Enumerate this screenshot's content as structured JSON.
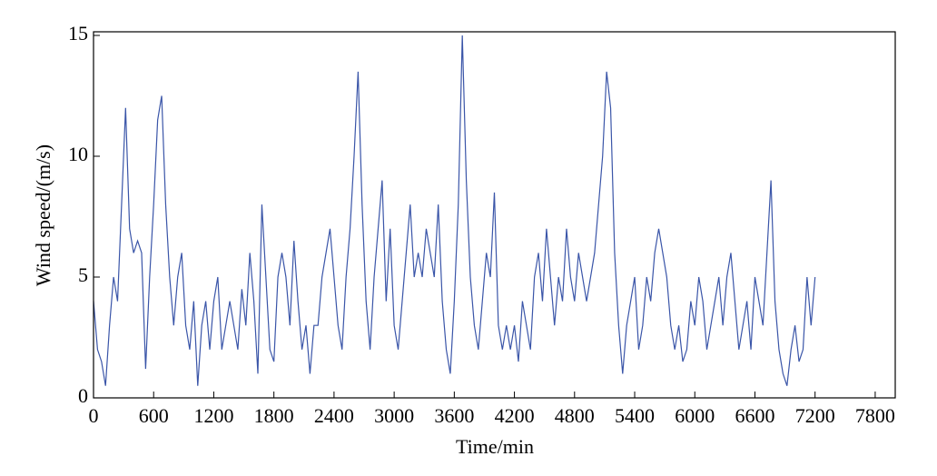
{
  "chart_data": {
    "type": "line",
    "x_label": "Time/min",
    "y_label": "Wind speed/(m/s)",
    "x": [
      0,
      40,
      80,
      120,
      160,
      200,
      240,
      280,
      320,
      360,
      400,
      440,
      480,
      520,
      560,
      600,
      640,
      680,
      720,
      760,
      800,
      840,
      880,
      920,
      960,
      1000,
      1040,
      1080,
      1120,
      1160,
      1200,
      1240,
      1280,
      1320,
      1360,
      1400,
      1440,
      1480,
      1520,
      1560,
      1600,
      1640,
      1680,
      1720,
      1760,
      1800,
      1840,
      1880,
      1920,
      1960,
      2000,
      2040,
      2080,
      2120,
      2160,
      2200,
      2240,
      2280,
      2320,
      2360,
      2400,
      2440,
      2480,
      2520,
      2560,
      2600,
      2640,
      2680,
      2720,
      2760,
      2800,
      2840,
      2880,
      2920,
      2960,
      3000,
      3040,
      3080,
      3120,
      3160,
      3200,
      3240,
      3280,
      3320,
      3360,
      3400,
      3440,
      3480,
      3520,
      3560,
      3600,
      3640,
      3680,
      3720,
      3760,
      3800,
      3840,
      3880,
      3920,
      3960,
      4000,
      4040,
      4080,
      4120,
      4160,
      4200,
      4240,
      4280,
      4320,
      4360,
      4400,
      4440,
      4480,
      4520,
      4560,
      4600,
      4640,
      4680,
      4720,
      4760,
      4800,
      4840,
      4880,
      4920,
      4960,
      5000,
      5040,
      5080,
      5120,
      5160,
      5200,
      5240,
      5280,
      5320,
      5360,
      5400,
      5440,
      5480,
      5520,
      5560,
      5600,
      5640,
      5680,
      5720,
      5760,
      5800,
      5840,
      5880,
      5920,
      5960,
      6000,
      6040,
      6080,
      6120,
      6160,
      6200,
      6240,
      6280,
      6320,
      6360,
      6400,
      6440,
      6480,
      6520,
      6560,
      6600,
      6640,
      6680,
      6720,
      6760,
      6800,
      6840,
      6880,
      6920,
      6960,
      7000,
      7040,
      7080,
      7120,
      7160,
      7200
    ],
    "series": [
      {
        "color": "#3a55a8",
        "values": [
          4,
          2,
          1.5,
          0.5,
          3,
          5,
          4,
          8,
          12,
          7,
          6,
          6.5,
          6,
          1.2,
          5,
          8,
          11.5,
          12.5,
          8,
          5,
          3,
          5,
          6,
          3,
          2,
          4,
          0.5,
          3,
          4,
          2,
          4,
          5,
          2,
          3,
          4,
          3,
          2,
          4.5,
          3,
          6,
          4,
          1,
          8,
          5,
          2,
          1.5,
          5,
          6,
          5,
          3,
          6.5,
          4,
          2,
          3,
          1,
          3,
          3,
          5,
          6,
          7,
          5,
          3,
          2,
          5,
          7,
          10,
          13.5,
          8,
          4,
          2,
          5,
          7,
          9,
          4,
          7,
          3,
          2,
          4,
          6,
          8,
          5,
          6,
          5,
          7,
          6,
          5,
          8,
          4,
          2,
          1,
          4,
          8,
          15,
          9,
          5,
          3,
          2,
          4,
          6,
          5,
          8.5,
          3,
          2,
          3,
          2,
          3,
          1.5,
          4,
          3,
          2,
          5,
          6,
          4,
          7,
          5,
          3,
          5,
          4,
          7,
          5,
          4,
          6,
          5,
          4,
          5,
          6,
          8,
          10,
          13.5,
          12,
          6,
          3,
          1,
          3,
          4,
          5,
          2,
          3,
          5,
          4,
          6,
          7,
          6,
          5,
          3,
          2,
          3,
          1.5,
          2,
          4,
          3,
          5,
          4,
          2,
          3,
          4,
          5,
          3,
          5,
          6,
          4,
          2,
          3,
          4,
          2,
          5,
          4,
          3,
          6,
          9,
          4,
          2,
          1,
          0.5,
          2,
          3,
          1.5,
          2,
          5,
          3,
          5
        ]
      }
    ],
    "xlim": [
      0,
      8000
    ],
    "xticks": [
      0,
      600,
      1200,
      1800,
      2400,
      3000,
      3600,
      4200,
      4800,
      5400,
      6000,
      6600,
      7200,
      7800
    ],
    "ylim": [
      0,
      15.15
    ],
    "yticks": [
      0,
      5,
      10,
      15
    ]
  }
}
